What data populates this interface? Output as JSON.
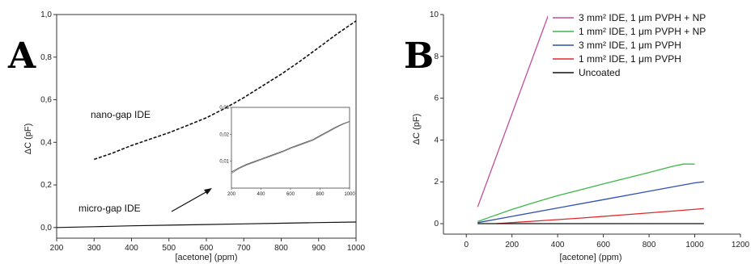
{
  "chart_data": [
    {
      "panel": "A",
      "type": "line",
      "xlabel": "[acetone] (ppm)",
      "ylabel": "ΔC (pF)",
      "xlim": [
        200,
        1000
      ],
      "ylim": [
        -0.05,
        1.0
      ],
      "xticks": [
        "200",
        "300",
        "400",
        "500",
        "600",
        "700",
        "800",
        "900",
        "1000"
      ],
      "yticks": [
        "0,0",
        "0,2",
        "0,4",
        "0,6",
        "0,8",
        "1,0"
      ],
      "grid": false,
      "annotations": [
        "nano-gap IDE",
        "micro-gap IDE"
      ],
      "series": [
        {
          "name": "nano-gap IDE",
          "color": "#111111",
          "style": "dashed",
          "x": [
            300,
            350,
            400,
            450,
            500,
            550,
            600,
            650,
            700,
            750,
            800,
            850,
            900,
            950,
            1000
          ],
          "y": [
            0.32,
            0.35,
            0.385,
            0.415,
            0.445,
            0.48,
            0.515,
            0.56,
            0.61,
            0.665,
            0.72,
            0.78,
            0.845,
            0.91,
            0.97
          ]
        },
        {
          "name": "micro-gap IDE",
          "color": "#111111",
          "style": "solid",
          "x": [
            200,
            300,
            400,
            500,
            600,
            700,
            800,
            900,
            1000
          ],
          "y": [
            0.0,
            0.004,
            0.008,
            0.011,
            0.014,
            0.017,
            0.02,
            0.023,
            0.026
          ]
        }
      ],
      "inset": {
        "xlim": [
          200,
          1000
        ],
        "ylim": [
          0,
          0.03
        ],
        "xticks": [
          "200",
          "400",
          "600",
          "800",
          "1000"
        ],
        "yticks": [
          "0,01",
          "0,02",
          "0,03"
        ],
        "series": [
          {
            "color": "#555555",
            "x": [
              200,
              250,
              300,
              350,
              400,
              450,
              500,
              550,
              600,
              650,
              700,
              750,
              800,
              850,
              900,
              950,
              1000
            ],
            "y": [
              0.006,
              0.0075,
              0.0088,
              0.0098,
              0.0108,
              0.0118,
              0.0128,
              0.0138,
              0.015,
              0.016,
              0.017,
              0.018,
              0.0195,
              0.021,
              0.0225,
              0.0238,
              0.0248
            ]
          },
          {
            "color": "#888888",
            "x": [
              200,
              250,
              300,
              350,
              400,
              450,
              500,
              550,
              600,
              650,
              700,
              750,
              800,
              850,
              900,
              950,
              1000
            ],
            "y": [
              0.0055,
              0.0072,
              0.0085,
              0.0095,
              0.0105,
              0.0115,
              0.0125,
              0.0135,
              0.0147,
              0.0157,
              0.0167,
              0.0177,
              0.0192,
              0.0207,
              0.0222,
              0.0236,
              0.0247
            ]
          }
        ]
      }
    },
    {
      "panel": "B",
      "type": "line",
      "xlabel": "[acetone] (ppm)",
      "ylabel": "ΔC (pF)",
      "xlim": [
        -100,
        1200
      ],
      "ylim": [
        -0.5,
        10
      ],
      "xticks": [
        "0",
        "200",
        "400",
        "600",
        "800",
        "1000",
        "1200"
      ],
      "yticks": [
        "0",
        "2",
        "4",
        "6",
        "8",
        "10"
      ],
      "grid": false,
      "legend": "top-right",
      "series": [
        {
          "name": "3 mm² IDE, 1 μm PVPH + NP",
          "color": "#c0509a",
          "x": [
            50,
            360
          ],
          "y": [
            0.8,
            10.0
          ]
        },
        {
          "name": "1 mm² IDE, 1 μm PVPH + NP",
          "color": "#3cb846",
          "x": [
            50,
            100,
            200,
            300,
            400,
            500,
            600,
            700,
            800,
            900,
            950,
            1000
          ],
          "y": [
            0.1,
            0.3,
            0.68,
            1.02,
            1.34,
            1.62,
            1.9,
            2.17,
            2.45,
            2.73,
            2.85,
            2.85
          ]
        },
        {
          "name": "3 mm² IDE, 1 μm PVPH",
          "color": "#3050b0",
          "x": [
            50,
            200,
            400,
            600,
            800,
            1000,
            1040
          ],
          "y": [
            0.05,
            0.35,
            0.75,
            1.15,
            1.55,
            1.95,
            2.0
          ]
        },
        {
          "name": "1 mm² IDE, 1 μm PVPH",
          "color": "#e02828",
          "x": [
            130,
            300,
            500,
            700,
            900,
            1040
          ],
          "y": [
            0.0,
            0.12,
            0.27,
            0.43,
            0.6,
            0.72
          ]
        },
        {
          "name": "Uncoated",
          "color": "#111111",
          "x": [
            50,
            1040
          ],
          "y": [
            0.0,
            0.0
          ]
        }
      ]
    }
  ]
}
